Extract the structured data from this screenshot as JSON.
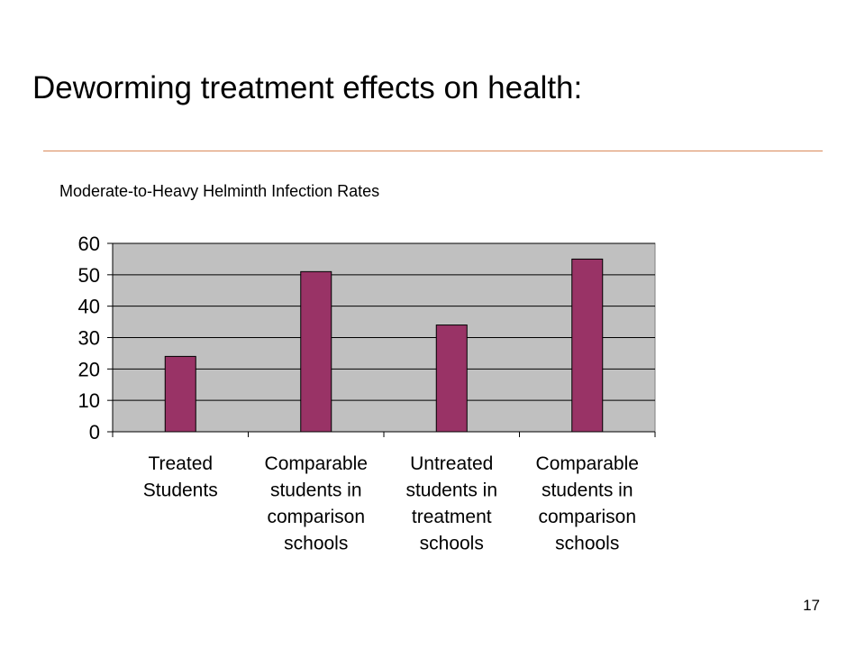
{
  "slide": {
    "title": "Deworming treatment effects on health:",
    "page_number": "17"
  },
  "colors": {
    "bar": "#993366",
    "plot_background": "#c0c0c0",
    "rule": "#d9895a"
  },
  "chart_data": {
    "type": "bar",
    "title": "Moderate-to-Heavy Helminth Infection Rates",
    "xlabel": "",
    "ylabel": "",
    "categories": [
      [
        "Treated",
        "Students"
      ],
      [
        "Comparable",
        "students in",
        "comparison",
        "schools"
      ],
      [
        "Untreated",
        "students in",
        "treatment",
        "schools"
      ],
      [
        "Comparable",
        "students in",
        "comparison",
        "schools"
      ]
    ],
    "values": [
      24,
      51,
      34,
      55
    ],
    "ylim": [
      0,
      60
    ],
    "yticks": [
      0,
      10,
      20,
      30,
      40,
      50,
      60
    ],
    "grid": true,
    "legend": "none"
  }
}
